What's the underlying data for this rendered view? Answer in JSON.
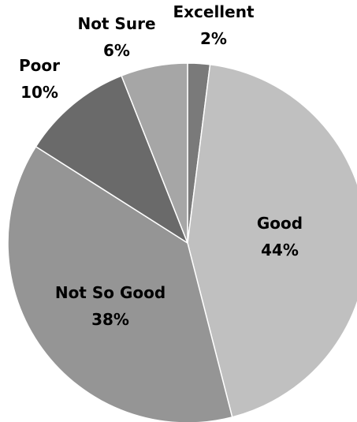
{
  "chart_data": {
    "type": "pie",
    "title": "",
    "start_angle_deg": 0,
    "direction": "clockwise",
    "slices": [
      {
        "label": "Excellent",
        "value": 2,
        "value_label": "2%",
        "color": "#7a7a7a"
      },
      {
        "label": "Good",
        "value": 44,
        "value_label": "44%",
        "color": "#c0c0c0"
      },
      {
        "label": "Not So Good",
        "value": 38,
        "value_label": "38%",
        "color": "#959595"
      },
      {
        "label": "Poor",
        "value": 10,
        "value_label": "10%",
        "color": "#6a6a6a"
      },
      {
        "label": "Not Sure",
        "value": 6,
        "value_label": "6%",
        "color": "#a6a6a6"
      }
    ],
    "edge_color": "#ffffff"
  }
}
